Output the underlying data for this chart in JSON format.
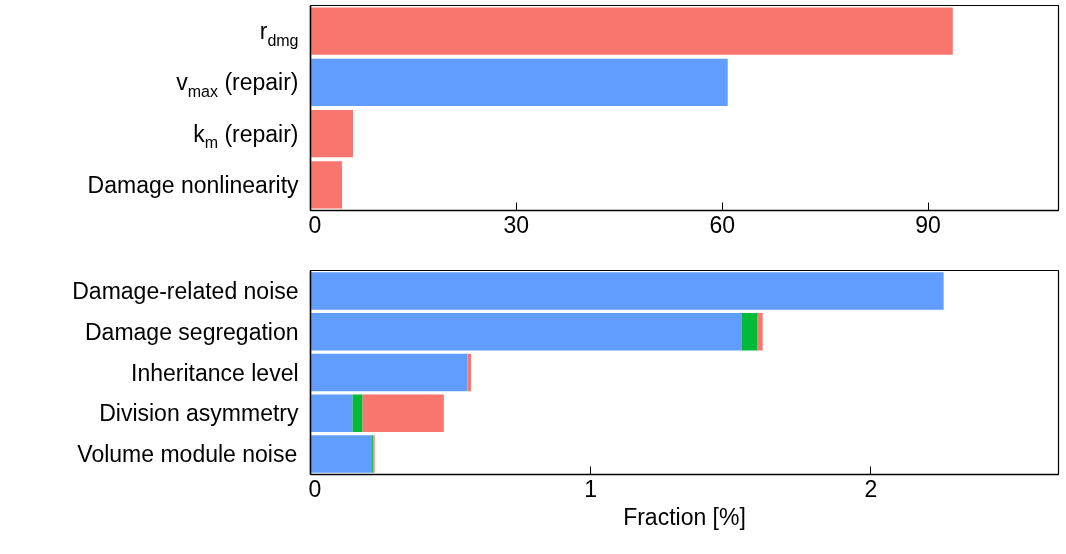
{
  "chart_data": [
    {
      "type": "bar",
      "orientation": "horizontal",
      "categories": [
        "r$_{dmg}$",
        "v$_{max}$ (repair)",
        "k$_{m}$ (repair)",
        "Damage nonlinearity"
      ],
      "values": [
        93.6,
        60.8,
        6.2,
        4.6
      ],
      "colors": [
        "#f8766d",
        "#619cff",
        "#f8766d",
        "#f8766d"
      ],
      "xlim": [
        0,
        109
      ],
      "xticks": [
        0,
        30,
        60,
        90
      ]
    },
    {
      "type": "bar",
      "orientation": "horizontal",
      "stacked": true,
      "xlabel": "Fraction [%]",
      "categories": [
        "Damage-related noise",
        "Damage segregation",
        "Inheritance level",
        "Division asymmetry",
        "Volume module noise"
      ],
      "series": [
        {
          "color": "#619cff",
          "values": [
            2.26,
            1.54,
            0.56,
            0.15,
            0.22
          ]
        },
        {
          "color": "#00ba38",
          "values": [
            0,
            0.056,
            0,
            0.036,
            0.004
          ]
        },
        {
          "color": "#f8766d",
          "values": [
            0,
            0.018,
            0.013,
            0.29,
            0.005
          ]
        }
      ],
      "xlim": [
        0,
        2.67
      ],
      "xticks": [
        0,
        1,
        2
      ]
    }
  ]
}
